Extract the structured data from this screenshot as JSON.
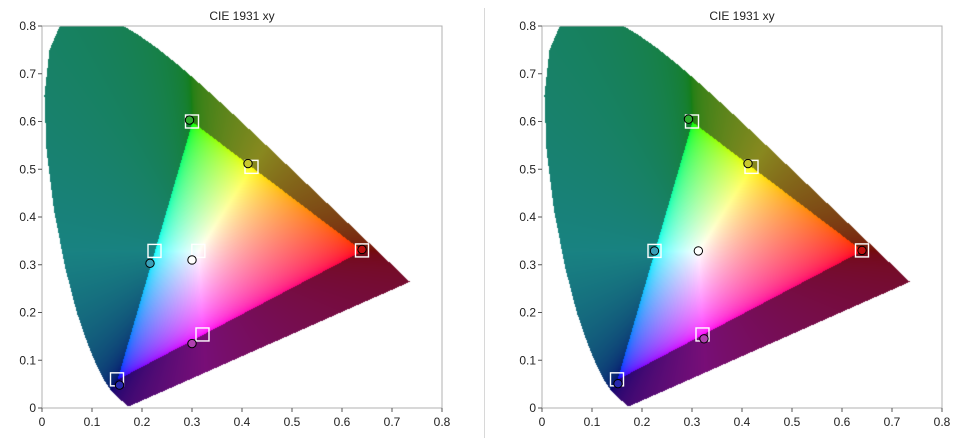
{
  "chart_data": [
    {
      "type": "scatter",
      "title": "CIE 1931 xy",
      "xlim": [
        0,
        0.8
      ],
      "ylim": [
        0,
        0.8
      ],
      "xticks": [
        "0",
        "0.1",
        "0.2",
        "0.3",
        "0.4",
        "0.5",
        "0.6",
        "0.7",
        "0.8"
      ],
      "yticks": [
        "0",
        "0.1",
        "0.2",
        "0.3",
        "0.4",
        "0.5",
        "0.6",
        "0.7",
        "0.8"
      ],
      "series": [
        {
          "marker": "square",
          "color": "#ffffff",
          "points": [
            [
              0.64,
              0.33
            ],
            [
              0.3,
              0.6
            ],
            [
              0.15,
              0.06
            ],
            [
              0.225,
              0.329
            ],
            [
              0.321,
              0.154
            ],
            [
              0.419,
              0.505
            ],
            [
              0.3127,
              0.329
            ]
          ]
        },
        {
          "marker": "circle",
          "points": [
            [
              0.64,
              0.332,
              "#c01010"
            ],
            [
              0.295,
              0.603,
              "#30b030"
            ],
            [
              0.155,
              0.048,
              "#2828b0"
            ],
            [
              0.216,
              0.303,
              "#3aa0b8"
            ],
            [
              0.3,
              0.135,
              "#b040b0"
            ],
            [
              0.412,
              0.512,
              "#c8c830"
            ],
            [
              0.3,
              0.31,
              "#ffffff"
            ]
          ]
        }
      ],
      "grid": false
    },
    {
      "type": "scatter",
      "title": "CIE 1931 xy",
      "xlim": [
        0,
        0.8
      ],
      "ylim": [
        0,
        0.8
      ],
      "xticks": [
        "0",
        "0.1",
        "0.2",
        "0.3",
        "0.4",
        "0.5",
        "0.6",
        "0.7",
        "0.8"
      ],
      "yticks": [
        "0",
        "0.1",
        "0.2",
        "0.3",
        "0.4",
        "0.5",
        "0.6",
        "0.7",
        "0.8"
      ],
      "series": [
        {
          "marker": "square",
          "color": "#ffffff",
          "points": [
            [
              0.64,
              0.33
            ],
            [
              0.3,
              0.6
            ],
            [
              0.15,
              0.06
            ],
            [
              0.225,
              0.329
            ],
            [
              0.321,
              0.154
            ],
            [
              0.419,
              0.505
            ]
          ]
        },
        {
          "marker": "circle",
          "points": [
            [
              0.64,
              0.33,
              "#c01010"
            ],
            [
              0.293,
              0.605,
              "#30b030"
            ],
            [
              0.152,
              0.051,
              "#2828b0"
            ],
            [
              0.225,
              0.329,
              "#3aa0b8"
            ],
            [
              0.324,
              0.145,
              "#b040b0"
            ],
            [
              0.412,
              0.512,
              "#c8c830"
            ],
            [
              0.3127,
              0.329,
              "#ffffff"
            ]
          ]
        }
      ],
      "grid": false
    }
  ]
}
